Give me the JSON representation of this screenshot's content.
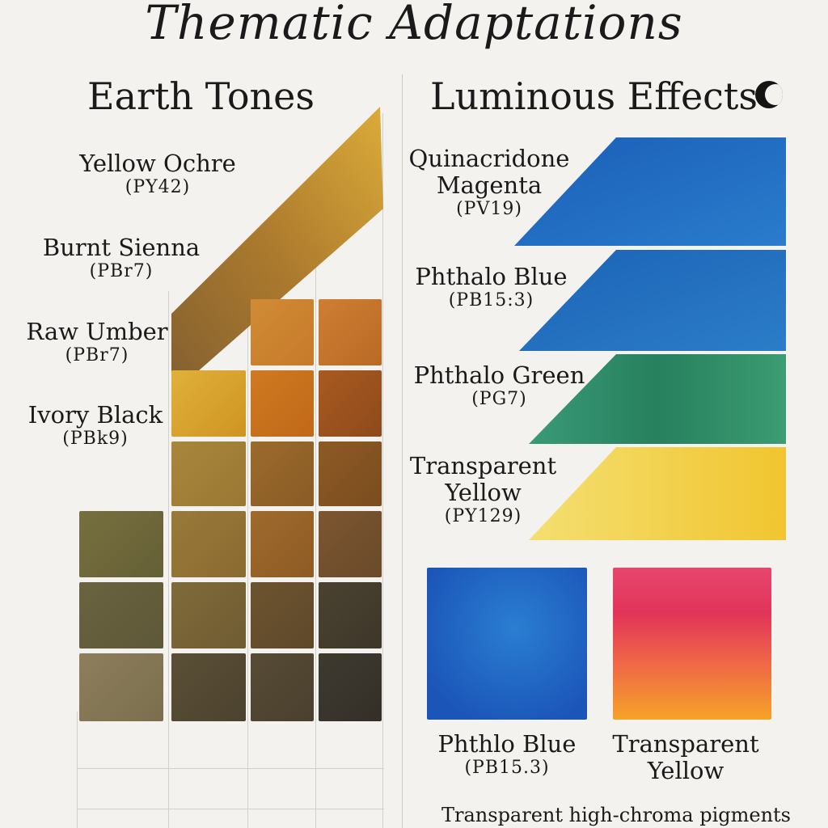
{
  "title": "Thematic Adaptations",
  "earth": {
    "heading": "Earth Tones",
    "pigments": [
      {
        "name": "Yellow Ochre",
        "code": "(PY42)"
      },
      {
        "name": "Burnt Sienna",
        "code": "(PBr7)"
      },
      {
        "name": "Raw Umber",
        "code": "(PBr7)"
      },
      {
        "name": "Ivory Black",
        "code": "(PBk9)"
      }
    ]
  },
  "luminous": {
    "heading": "Luminous Effects",
    "icon": "half-moon-icon",
    "pigments": [
      {
        "name_line1": "Quinacridone",
        "name_line2": "Magenta",
        "code": "(PV19)"
      },
      {
        "name": "Phthalo Blue",
        "code": "(PB15:3)"
      },
      {
        "name": "Phthalo Green",
        "code": "(PG7)"
      },
      {
        "name_line1": "Transparent",
        "name_line2": "Yellow",
        "code": "(PY129)"
      }
    ],
    "swatches": [
      {
        "name": "Phthlo Blue",
        "code": "(PB15.3)"
      },
      {
        "name_line1": "Transparent",
        "name_line2": "Yellow"
      }
    ],
    "caption": "Transparent high-chroma pigments"
  },
  "colors": {
    "paper": "#f3f2ee",
    "yellow_ochre": "#d49a2a",
    "burnt_sienna": "#b5651d",
    "raw_umber": "#6b5a36",
    "ivory_black": "#3d372c",
    "phthalo_blue": "#1f6cc0",
    "phthalo_green": "#2f8a66",
    "transparent_yellow": "#f2c93a",
    "magenta": "#e0325e"
  }
}
